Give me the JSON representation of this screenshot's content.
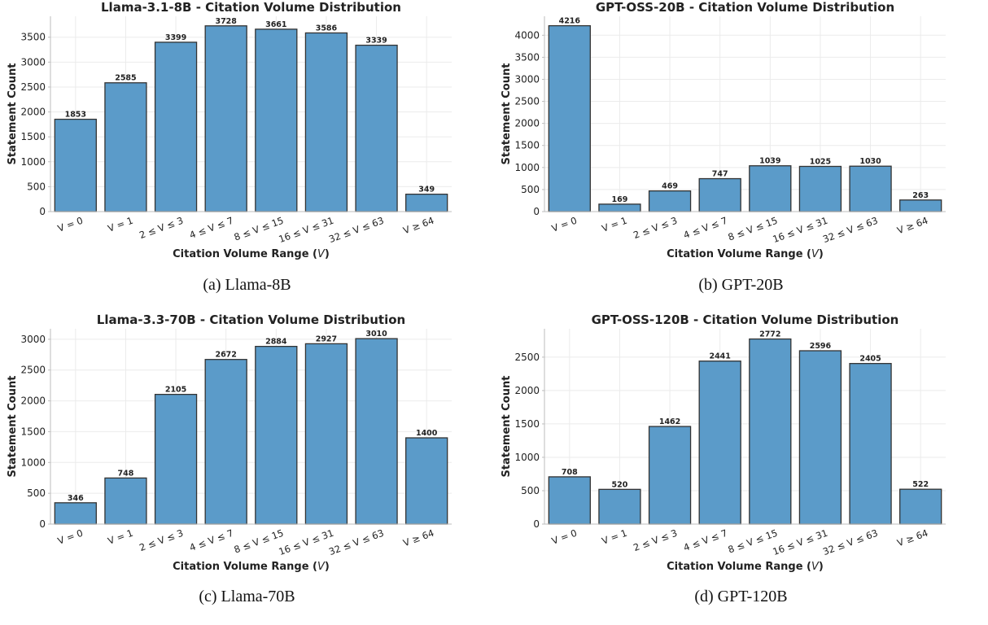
{
  "figure": {
    "categories": [
      "V = 0",
      "V = 1",
      "2 ≤ V ≤ 3",
      "4 ≤ V ≤ 7",
      "8 ≤ V ≤ 15",
      "16 ≤ V ≤ 31",
      "32 ≤ V ≤ 63",
      "V ≥ 64"
    ],
    "xlabel_prefix": "Citation Volume Range (",
    "xlabel_var": "V",
    "xlabel_suffix": ")",
    "ylabel": "Statement Count",
    "bar_color": "#5b9bc9",
    "bar_edge_color": "#333333"
  },
  "chart_data": [
    {
      "type": "bar",
      "caption": "(a) Llama-8B",
      "title": "Llama-3.1-8B - Citation Volume Distribution",
      "categories": [
        "V = 0",
        "V = 1",
        "2 ≤ V ≤ 3",
        "4 ≤ V ≤ 7",
        "8 ≤ V ≤ 15",
        "16 ≤ V ≤ 31",
        "32 ≤ V ≤ 63",
        "V ≥ 64"
      ],
      "values": [
        1853,
        2585,
        3399,
        3728,
        3661,
        3586,
        3339,
        349
      ],
      "xlabel": "Citation Volume Range (V)",
      "ylabel": "Statement Count",
      "ylim": [
        0,
        3920
      ],
      "yticks": [
        0,
        500,
        1000,
        1500,
        2000,
        2500,
        3000,
        3500
      ],
      "grid": true
    },
    {
      "type": "bar",
      "caption": "(b) GPT-20B",
      "title": "GPT-OSS-20B - Citation Volume Distribution",
      "categories": [
        "V = 0",
        "V = 1",
        "2 ≤ V ≤ 3",
        "4 ≤ V ≤ 7",
        "8 ≤ V ≤ 15",
        "16 ≤ V ≤ 31",
        "32 ≤ V ≤ 63",
        "V ≥ 64"
      ],
      "values": [
        4216,
        169,
        469,
        747,
        1039,
        1025,
        1030,
        263
      ],
      "xlabel": "Citation Volume Range (V)",
      "ylabel": "Statement Count",
      "ylim": [
        0,
        4430
      ],
      "yticks": [
        0,
        500,
        1000,
        1500,
        2000,
        2500,
        3000,
        3500,
        4000
      ],
      "grid": true
    },
    {
      "type": "bar",
      "caption": "(c) Llama-70B",
      "title": "Llama-3.3-70B - Citation Volume Distribution",
      "categories": [
        "V = 0",
        "V = 1",
        "2 ≤ V ≤ 3",
        "4 ≤ V ≤ 7",
        "8 ≤ V ≤ 15",
        "16 ≤ V ≤ 31",
        "32 ≤ V ≤ 63",
        "V ≥ 64"
      ],
      "values": [
        346,
        748,
        2105,
        2672,
        2884,
        2927,
        3010,
        1400
      ],
      "xlabel": "Citation Volume Range (V)",
      "ylabel": "Statement Count",
      "ylim": [
        0,
        3170
      ],
      "yticks": [
        0,
        500,
        1000,
        1500,
        2000,
        2500,
        3000
      ],
      "grid": true
    },
    {
      "type": "bar",
      "caption": "(d) GPT-120B",
      "title": "GPT-OSS-120B - Citation Volume Distribution",
      "categories": [
        "V = 0",
        "V = 1",
        "2 ≤ V ≤ 3",
        "4 ≤ V ≤ 7",
        "8 ≤ V ≤ 15",
        "16 ≤ V ≤ 31",
        "32 ≤ V ≤ 63",
        "V ≥ 64"
      ],
      "values": [
        708,
        520,
        1462,
        2441,
        2772,
        2596,
        2405,
        522
      ],
      "xlabel": "Citation Volume Range (V)",
      "ylabel": "Statement Count",
      "ylim": [
        0,
        2925
      ],
      "yticks": [
        0,
        500,
        1000,
        1500,
        2000,
        2500
      ],
      "grid": true
    }
  ]
}
